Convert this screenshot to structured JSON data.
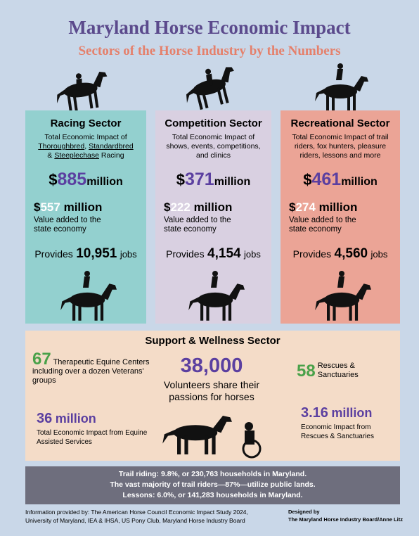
{
  "header": {
    "title": "Maryland Horse Economic Impact",
    "subtitle": "Sectors of the Horse Industry by the Numbers"
  },
  "sectors": [
    {
      "name": "Racing Sector",
      "description": [
        {
          "text": "Total Economic Impact of "
        },
        {
          "text": "Thoroughbred",
          "underline": true
        },
        {
          "text": ", "
        },
        {
          "text": "Standardbred",
          "underline": true
        },
        {
          "text": " & "
        },
        {
          "text": "Steeplechase",
          "underline": true
        },
        {
          "text": " Racing"
        }
      ],
      "impact": {
        "currency": "$",
        "amount": "885",
        "unit": "million"
      },
      "value_added": {
        "currency": "$",
        "amount": "557",
        "unit": "million",
        "caption": "Value added to the state economy"
      },
      "jobs": {
        "before": "Provides",
        "amount": "10,951",
        "after": "jobs"
      }
    },
    {
      "name": "Competition Sector",
      "description": [
        {
          "text": "Total Economic Impact of shows, events, competitions, and clinics"
        }
      ],
      "impact": {
        "currency": "$",
        "amount": "371",
        "unit": "million"
      },
      "value_added": {
        "currency": "$",
        "amount": "222",
        "unit": "million",
        "caption": "Value added to the state economy"
      },
      "jobs": {
        "before": "Provides",
        "amount": "4,154",
        "after": "jobs"
      }
    },
    {
      "name": "Recreational Sector",
      "description": [
        {
          "text": "Total Economic Impact of trail riders, fox hunters, pleasure riders, lessons and more"
        }
      ],
      "impact": {
        "currency": "$",
        "amount": "461",
        "unit": "million"
      },
      "value_added": {
        "currency": "$",
        "amount": "274",
        "unit": "million",
        "caption": "Value added to the state economy"
      },
      "jobs": {
        "before": "Provides",
        "amount": "4,560",
        "after": "jobs"
      }
    }
  ],
  "support": {
    "title": "Support & Wellness Sector",
    "therapeutic": {
      "amount": "67",
      "text": "Therapeutic Equine Centers including over a dozen Veterans' groups"
    },
    "volunteers": {
      "amount": "38,000",
      "text": "Volunteers share their passions for horses"
    },
    "rescues": {
      "amount": "58",
      "text": "Rescues & Sanctuaries"
    },
    "assisted": {
      "amount": "36",
      "unit": "million",
      "text": "Total Economic Impact from Equine Assisted Services"
    },
    "rescue_impact": {
      "amount": "3.16",
      "unit": "million",
      "text": "Economic Impact from Rescues & Sanctuaries"
    }
  },
  "facts": [
    "Trail riding: 9.8%, or 230,763 households in Maryland.",
    "The vast majority of trail riders—87%—utilize public lands.",
    "Lessons: 6.0%, or 141,283 households in Maryland."
  ],
  "footer": {
    "sources": "Information provided by: The American Horse Council Economic Impact Study 2024, University of Maryland, IEA & IHSA, US Pony Club, Maryland Horse Industry Board",
    "designed_label": "Designed by",
    "designer": "The Maryland Horse Industry Board/Anne Litz"
  }
}
